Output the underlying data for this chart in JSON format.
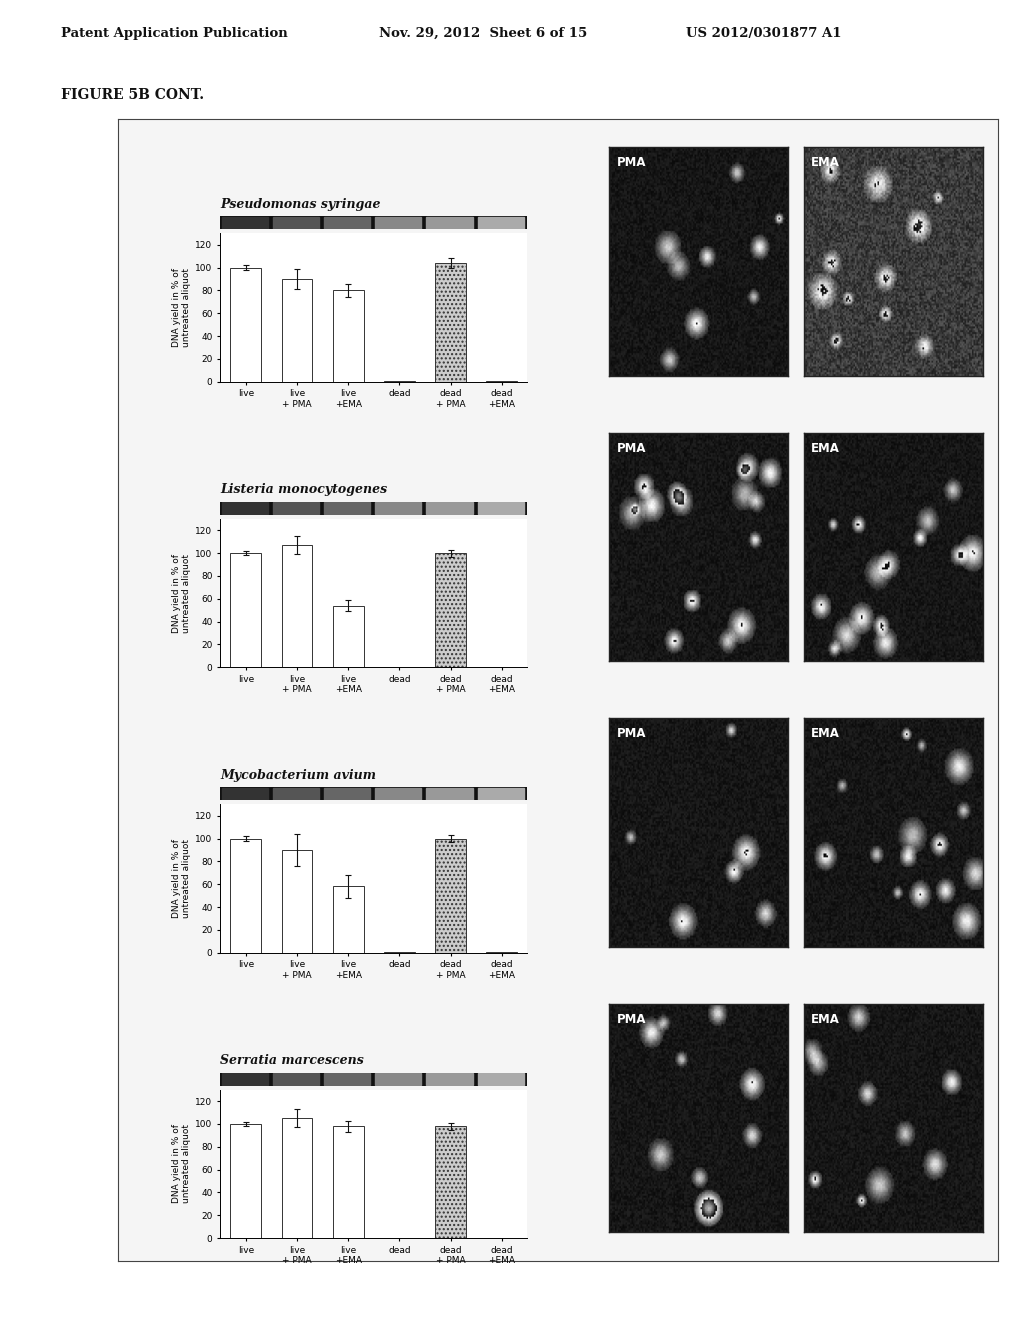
{
  "page_header_left": "Patent Application Publication",
  "page_header_mid": "Nov. 29, 2012  Sheet 6 of 15",
  "page_header_right": "US 2012/0301877 A1",
  "figure_label": "FIGURE 5B CONT.",
  "background_color": "#ffffff",
  "charts": [
    {
      "title": "Pseudomonas syringae",
      "categories": [
        "live",
        "live\n+ PMA",
        "live\n+EMA",
        "dead",
        "dead\n+ PMA",
        "dead\n+EMA"
      ],
      "values": [
        100,
        90,
        80,
        0,
        104,
        0
      ],
      "errors": [
        2,
        9,
        6,
        0,
        4,
        0
      ],
      "bar_colors": [
        "#ffffff",
        "#ffffff",
        "#ffffff",
        "#bbbbbb",
        "#aaaaaa",
        "#bbbbbb"
      ],
      "dead_bar_pattern": true,
      "bar_edgecolor": "#333333",
      "ylim": [
        0,
        130
      ],
      "yticks": [
        0,
        20,
        40,
        60,
        80,
        100,
        120
      ],
      "ylabel": "DNA yield in % of\nuntreated aliquot"
    },
    {
      "title": "Listeria monocytogenes",
      "categories": [
        "live",
        "live\n+ PMA",
        "live\n+EMA",
        "dead",
        "dead\n+ PMA",
        "dead\n+EMA"
      ],
      "values": [
        100,
        107,
        54,
        0,
        100,
        0
      ],
      "errors": [
        2,
        8,
        5,
        0,
        3,
        0
      ],
      "bar_colors": [
        "#ffffff",
        "#ffffff",
        "#ffffff",
        "#bbbbbb",
        "#aaaaaa",
        "#bbbbbb"
      ],
      "dead_bar_pattern": true,
      "bar_edgecolor": "#333333",
      "ylim": [
        0,
        130
      ],
      "yticks": [
        0,
        20,
        40,
        60,
        80,
        100,
        120
      ],
      "ylabel": "DNA yield in % of\nuntreated aliquot"
    },
    {
      "title": "Mycobacterium avium",
      "categories": [
        "live",
        "live\n+ PMA",
        "live\n+EMA",
        "dead",
        "dead\n+ PMA",
        "dead\n+EMA"
      ],
      "values": [
        100,
        90,
        58,
        0,
        100,
        0
      ],
      "errors": [
        2,
        14,
        10,
        0,
        3,
        0
      ],
      "bar_colors": [
        "#ffffff",
        "#ffffff",
        "#ffffff",
        "#bbbbbb",
        "#aaaaaa",
        "#bbbbbb"
      ],
      "dead_bar_pattern": true,
      "bar_edgecolor": "#333333",
      "ylim": [
        0,
        130
      ],
      "yticks": [
        0,
        20,
        40,
        60,
        80,
        100,
        120
      ],
      "ylabel": "DNA yield in % of\nuntreated aliquot"
    },
    {
      "title": "Serratia marcescens",
      "categories": [
        "live",
        "live\n+ PMA",
        "live\n+EMA",
        "dead",
        "dead\n+ PMA",
        "dead\n+EMA"
      ],
      "values": [
        100,
        105,
        98,
        0,
        98,
        0
      ],
      "errors": [
        2,
        8,
        5,
        0,
        3,
        0
      ],
      "bar_colors": [
        "#ffffff",
        "#ffffff",
        "#ffffff",
        "#bbbbbb",
        "#aaaaaa",
        "#bbbbbb"
      ],
      "dead_bar_pattern": true,
      "bar_edgecolor": "#333333",
      "ylim": [
        0,
        130
      ],
      "yticks": [
        0,
        20,
        40,
        60,
        80,
        100,
        120
      ],
      "ylabel": "DNA yield in % of\nuntreated aliquot"
    }
  ],
  "img_seeds_pma": [
    1,
    20,
    40,
    60
  ],
  "img_seeds_ema": [
    5,
    25,
    45,
    65
  ],
  "pma_label_color": "#ffffff",
  "ema_label_color": "#ffffff",
  "img_bg": 10,
  "img_noise": 25
}
